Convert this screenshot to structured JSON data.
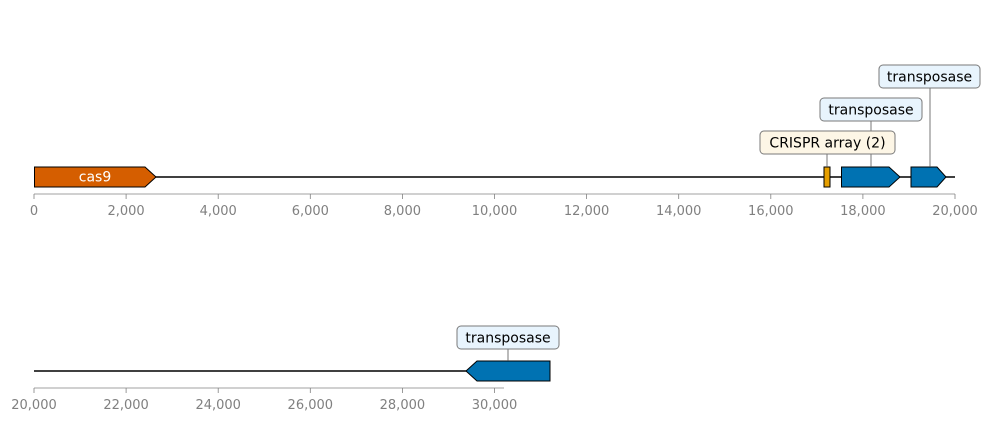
{
  "colors": {
    "cas9": "#d55e00",
    "transposase": "#0072b2",
    "crispr": "#e69f00",
    "backbone": "#000000",
    "tick": "#808080",
    "box_blue_fill": "#e8f4fd",
    "box_orange_fill": "#fdf6e6",
    "box_edge": "#7a7a7a"
  },
  "tracks": [
    {
      "range": [
        0,
        20000
      ],
      "tick_labels": [
        "0",
        "2,000",
        "4,000",
        "6,000",
        "8,000",
        "10,000",
        "12,000",
        "14,000",
        "16,000",
        "18,000",
        "20,000"
      ]
    },
    {
      "range": [
        20000,
        31200
      ],
      "tick_labels": [
        "20,000",
        "22,000",
        "24,000",
        "26,000",
        "28,000",
        "30,000"
      ]
    }
  ],
  "features": [
    {
      "name": "cas9",
      "track": 0,
      "start": 0,
      "end": 2650,
      "strand": 1,
      "type": "gene"
    },
    {
      "name": "CRISPR array (2)",
      "track": 0,
      "start": 17130,
      "end": 17270,
      "strand": 0,
      "type": "crispr"
    },
    {
      "name": "transposase",
      "track": 0,
      "start": 17500,
      "end": 18800,
      "strand": 1,
      "type": "gene"
    },
    {
      "name": "transposase",
      "track": 0,
      "start": 19050,
      "end": 19850,
      "strand": 1,
      "type": "gene"
    },
    {
      "name": "transposase",
      "track": 1,
      "start": 29400,
      "end": 31200,
      "strand": -1,
      "type": "gene"
    }
  ]
}
